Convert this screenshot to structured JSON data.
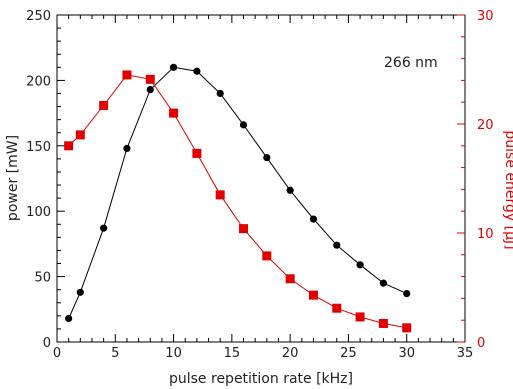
{
  "chart_data": {
    "type": "line",
    "xlabel": "pulse repetition rate [kHz]",
    "ylabel": "power [mW]",
    "y2label": "pulse energy [µJ]",
    "annotation": "266 nm",
    "xlim": [
      0,
      35
    ],
    "ylim": [
      0,
      250
    ],
    "y2lim": [
      0,
      30
    ],
    "xticks": [
      "0",
      "5",
      "10",
      "15",
      "20",
      "25",
      "30",
      "35"
    ],
    "yticks": [
      "0",
      "50",
      "100",
      "150",
      "200",
      "250"
    ],
    "y2ticks": [
      "0",
      "10",
      "20",
      "30"
    ],
    "grid": false,
    "series": [
      {
        "axis": "left",
        "color": "#000000",
        "marker": "circle",
        "x": [
          1,
          2,
          4,
          6,
          8,
          10,
          12,
          14,
          16,
          18,
          20,
          22,
          24,
          26,
          28,
          30
        ],
        "values": [
          18,
          38,
          87,
          148,
          193,
          210,
          207,
          190,
          166,
          141,
          116,
          94,
          74,
          59,
          45,
          37
        ]
      },
      {
        "axis": "right",
        "color": "#e00000",
        "marker": "square",
        "x": [
          1,
          2,
          4,
          6,
          8,
          10,
          12,
          14,
          16,
          18,
          20,
          22,
          24,
          26,
          28,
          30
        ],
        "values": [
          18,
          19,
          21.7,
          24.5,
          24.1,
          21,
          17.3,
          13.5,
          10.4,
          7.9,
          5.8,
          4.3,
          3.1,
          2.3,
          1.7,
          1.3
        ]
      }
    ]
  }
}
